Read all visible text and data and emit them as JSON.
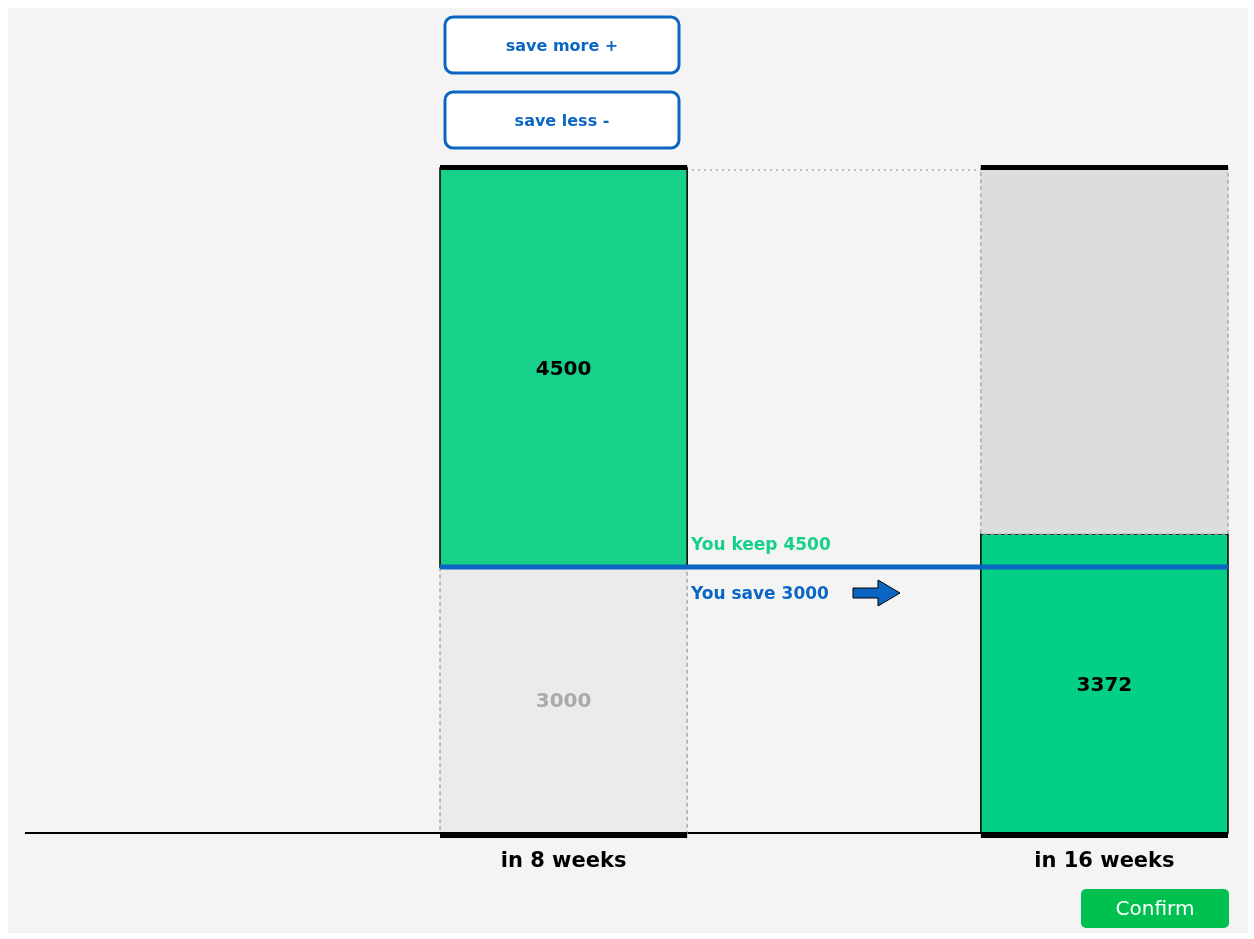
{
  "chart_data": {
    "type": "bar",
    "stacked": true,
    "data_labels": true,
    "categories": [
      "in 8 weeks",
      "in 16 weeks"
    ],
    "series": [
      {
        "colors": [
          "#ebebeb",
          "#03cf85"
        ],
        "values": [
          3000,
          3372
        ]
      },
      {
        "colors": [
          "#17d08a",
          "#dcdddf"
        ],
        "values": [
          4500,
          null
        ]
      }
    ],
    "ref_lines": [
      {
        "axis": "y",
        "value": 3000,
        "color": "#0a66c2"
      },
      {
        "axis": "y",
        "value": 7500,
        "color": "#aaaaaa",
        "line_style": "dotted"
      }
    ],
    "annotations": [
      "save more +",
      "save less -",
      "You keep 4500",
      "You save 3000",
      "Confirm"
    ]
  }
}
